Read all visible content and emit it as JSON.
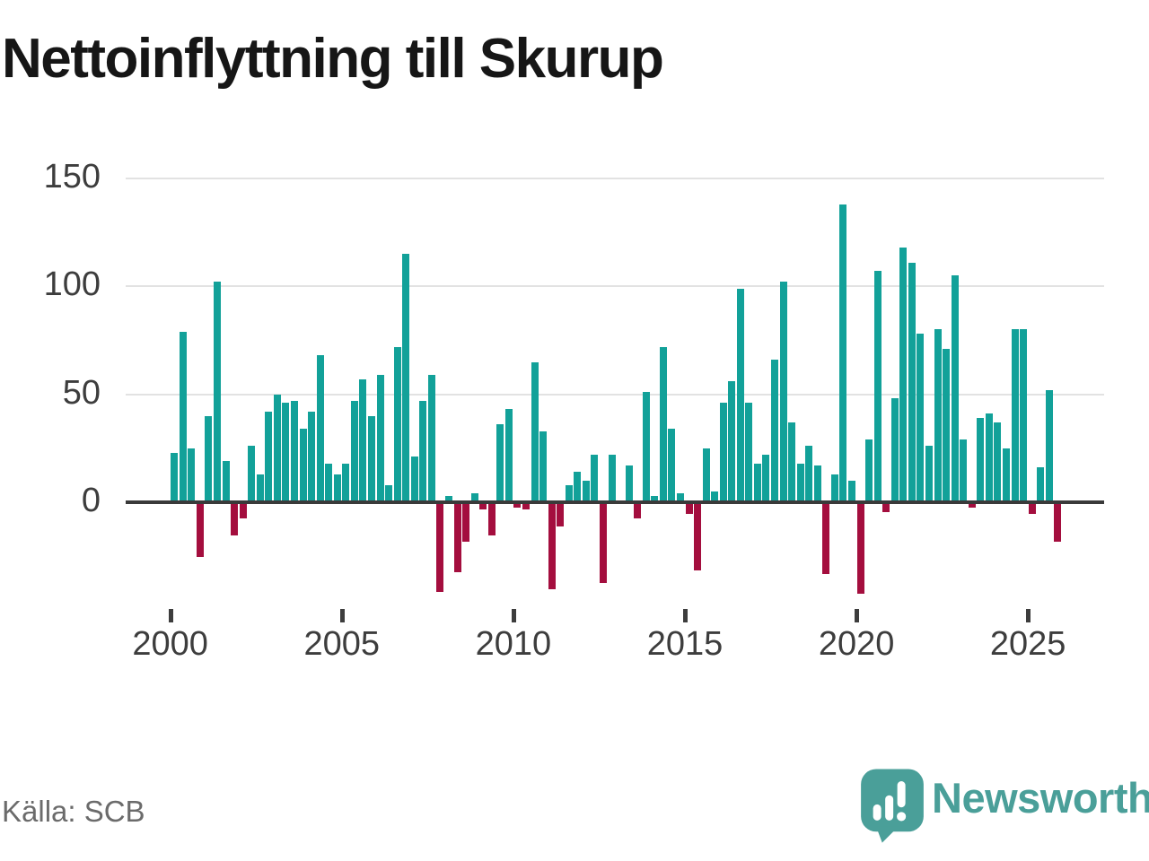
{
  "title": "Nettoinflyttning till Skurup",
  "source": "Källa: SCB",
  "brand": {
    "name": "Newsworthy",
    "color": "#4a9f99"
  },
  "colors": {
    "bar_positive": "#12a199",
    "bar_negative": "#a40e3e",
    "gridline": "#e2e2e2",
    "zero_axis": "#3a3a3a",
    "tick_text": "#3d3d3d",
    "title_text": "#161616",
    "source_text": "#6b6b6b"
  },
  "chart_data": {
    "type": "bar",
    "title": "Nettoinflyttning till Skurup",
    "xlabel": "",
    "ylabel": "",
    "frequency": "quarterly",
    "start_year": 2000,
    "yticks": [
      0,
      50,
      100,
      150
    ],
    "xticks": [
      2000,
      2005,
      2010,
      2015,
      2020,
      2025
    ],
    "ylim": [
      -50,
      160
    ],
    "grid": "horizontal",
    "legend": "none",
    "values_by_year": {
      "2000": [
        23,
        79,
        25,
        -25
      ],
      "2001": [
        40,
        102,
        19,
        -15
      ],
      "2002": [
        -7,
        26,
        13,
        42
      ],
      "2003": [
        50,
        46,
        47,
        34
      ],
      "2004": [
        42,
        68,
        18,
        13
      ],
      "2005": [
        18,
        47,
        57,
        40
      ],
      "2006": [
        59,
        8,
        72,
        115
      ],
      "2007": [
        21,
        47,
        59,
        -41
      ],
      "2008": [
        3,
        -32,
        -18,
        4
      ],
      "2009": [
        -3,
        -15,
        36,
        43
      ],
      "2010": [
        -2,
        -3,
        65,
        33
      ],
      "2011": [
        -40,
        -11,
        8,
        14
      ],
      "2012": [
        10,
        22,
        -37,
        22
      ],
      "2013": [
        0,
        17,
        -7,
        51
      ],
      "2014": [
        3,
        72,
        34,
        4
      ],
      "2015": [
        -5,
        -31,
        25,
        5
      ],
      "2016": [
        46,
        56,
        99,
        46
      ],
      "2017": [
        18,
        22,
        66,
        102
      ],
      "2018": [
        37,
        18,
        26,
        17
      ],
      "2019": [
        -33,
        13,
        138,
        10
      ],
      "2020": [
        -42,
        29,
        107,
        -4
      ],
      "2021": [
        48,
        118,
        111,
        78
      ],
      "2022": [
        26,
        80,
        71,
        105
      ],
      "2023": [
        29,
        -2,
        39,
        41
      ],
      "2024": [
        37,
        25,
        80,
        80
      ],
      "2025": [
        -5,
        16,
        52,
        -18
      ]
    }
  }
}
